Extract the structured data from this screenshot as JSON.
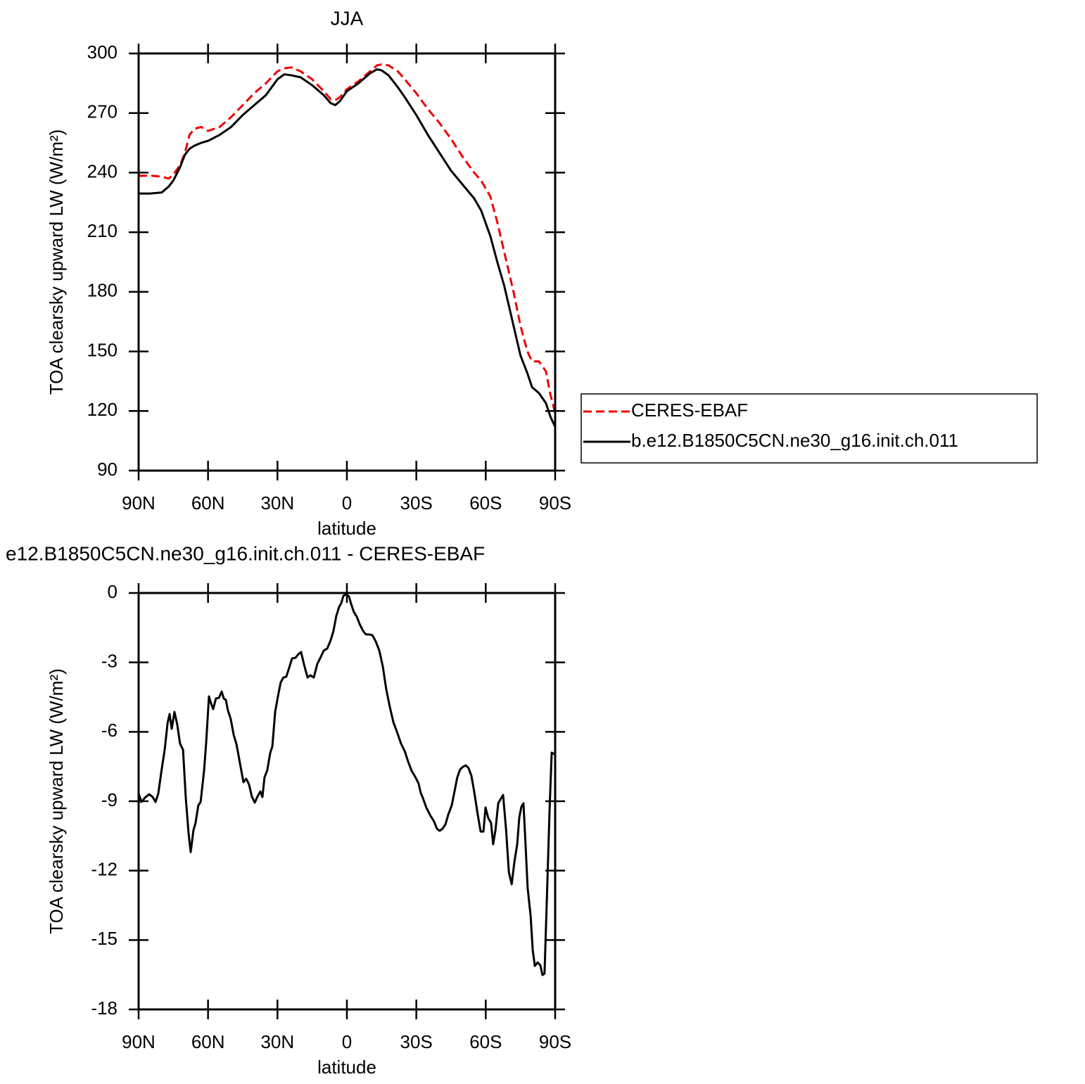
{
  "chart_data": [
    {
      "type": "line",
      "title": "JJA",
      "x_label": "latitude",
      "y_label": "TOA clearsky upward LW (W/m²)",
      "x": [
        90,
        85,
        80,
        77,
        75,
        72,
        70,
        68,
        66,
        63,
        60,
        55,
        50,
        45,
        40,
        35,
        30,
        27,
        24,
        20,
        15,
        10,
        7,
        5,
        3,
        0,
        -5,
        -10,
        -13,
        -15,
        -18,
        -22,
        -25,
        -30,
        -35,
        -40,
        -45,
        -50,
        -55,
        -58,
        -62,
        -65,
        -68,
        -72,
        -75,
        -78,
        -80,
        -83,
        -86,
        -88,
        -90
      ],
      "series": [
        {
          "name": "CERES-EBAF",
          "color": "#ee0000",
          "linestyle": "dashed",
          "values": [
            238.4,
            238.5,
            238,
            237,
            239,
            244,
            250,
            259,
            262,
            263,
            261,
            263,
            268,
            274,
            280,
            285,
            291,
            292.5,
            293,
            291,
            287,
            281,
            277,
            276.5,
            278,
            282,
            286,
            291,
            294,
            294.5,
            294,
            291,
            287,
            280,
            272,
            265,
            257,
            248,
            240,
            236,
            228,
            215,
            200,
            180,
            163,
            150,
            145,
            145,
            140,
            128,
            119
          ]
        },
        {
          "name": "b.e12.B1850C5CN.ne30_g16.init.ch.011",
          "color": "#000000",
          "linestyle": "solid",
          "values": [
            229.5,
            229.5,
            230,
            233,
            236,
            243,
            249,
            252,
            253.5,
            255,
            256,
            259,
            263,
            269,
            274,
            279,
            287,
            289.5,
            289,
            288,
            284,
            279,
            275,
            274,
            276,
            281,
            285,
            290,
            292,
            291.5,
            289,
            283,
            278,
            269,
            259,
            250,
            241,
            234,
            227,
            221,
            208,
            195,
            183,
            163,
            148,
            139,
            132,
            129,
            124,
            117,
            112
          ]
        }
      ],
      "xlim": [
        90,
        -90
      ],
      "xticks": [
        {
          "value": 90,
          "label": "90N"
        },
        {
          "value": 60,
          "label": "60N"
        },
        {
          "value": 30,
          "label": "30N"
        },
        0,
        {
          "value": -30,
          "label": "30S"
        },
        {
          "value": -60,
          "label": "60S"
        },
        {
          "value": -90,
          "label": "90S"
        }
      ],
      "ylim": [
        90,
        300
      ],
      "yticks": [
        90,
        120,
        150,
        180,
        210,
        240,
        270,
        300
      ],
      "legend": "right"
    },
    {
      "type": "line",
      "title": "e12.B1850C5CN.ne30_g16.init.ch.011 - CERES-EBAF",
      "x_label": "latitude",
      "y_label": "TOA clearsky upward LW (W/m²)",
      "x": [
        90,
        88.8,
        87,
        85.4,
        83.9,
        82.7,
        81.5,
        80.3,
        78.7,
        77.5,
        76.6,
        75.7,
        74.5,
        73.3,
        72.1,
        70.8,
        69.6,
        68.4,
        67.5,
        66.3,
        65.4,
        64.2,
        63.2,
        61.7,
        60.8,
        59.6,
        58.7,
        57.8,
        56.6,
        55.3,
        54.1,
        53.2,
        52.3,
        51.4,
        50.2,
        48.9,
        47.7,
        46.2,
        44.7,
        43.5,
        42.3,
        41.1,
        39.8,
        38.6,
        37.4,
        36.5,
        35.6,
        34.4,
        33.1,
        32.2,
        31,
        29.8,
        28.6,
        27.4,
        26.2,
        24.9,
        23.7,
        22.2,
        21,
        19.8,
        18.5,
        17,
        15.8,
        14.3,
        12.8,
        11.6,
        10,
        8.5,
        7,
        5.8,
        4.6,
        3.4,
        2.4,
        1.5,
        0.3,
        -0.9,
        -1.8,
        -3,
        -4.3,
        -5.5,
        -7,
        -8.2,
        -9.4,
        -11,
        -12.5,
        -14,
        -15.5,
        -17,
        -18.5,
        -20.1,
        -21.6,
        -23.4,
        -25,
        -26.4,
        -28,
        -29.5,
        -31,
        -31.9,
        -32.8,
        -34.3,
        -36.2,
        -37.7,
        -38.9,
        -40.1,
        -41.3,
        -42.6,
        -43.8,
        -45.3,
        -46.5,
        -47.7,
        -48.9,
        -50.2,
        -51.4,
        -52.6,
        -53.8,
        -55,
        -56.5,
        -57.8,
        -59,
        -59.9,
        -61.1,
        -62.3,
        -63.2,
        -64.2,
        -65.4,
        -66.6,
        -67.5,
        -68.8,
        -70,
        -71.2,
        -72.4,
        -73.6,
        -74.5,
        -75.4,
        -76.3,
        -77.2,
        -78.1,
        -79.4,
        -80.3,
        -81.2,
        -82.4,
        -83.6,
        -84.5,
        -85.4,
        -86.3,
        -87.6,
        -88.5,
        -89.7
      ],
      "series": [
        {
          "name": "b.e12.B1850C5CN.ne30_g16.init.ch.011 - CERES-EBAF",
          "color": "#000000",
          "linestyle": "solid",
          "values": [
            -8.67,
            -9.03,
            -8.82,
            -8.7,
            -8.82,
            -9.03,
            -8.67,
            -7.81,
            -6.75,
            -5.63,
            -5.23,
            -5.87,
            -5.14,
            -5.69,
            -6.51,
            -6.78,
            -8.88,
            -10.4,
            -11.2,
            -10.25,
            -9.94,
            -9.18,
            -9.03,
            -7.66,
            -6.45,
            -4.47,
            -4.77,
            -5.02,
            -4.56,
            -4.53,
            -4.26,
            -4.56,
            -4.62,
            -5.08,
            -5.44,
            -6.14,
            -6.54,
            -7.36,
            -8.18,
            -8.03,
            -8.27,
            -8.79,
            -9.06,
            -8.79,
            -8.58,
            -8.82,
            -7.97,
            -7.66,
            -6.9,
            -6.63,
            -5.14,
            -4.47,
            -3.86,
            -3.65,
            -3.62,
            -3.22,
            -2.83,
            -2.8,
            -2.65,
            -2.55,
            -3.1,
            -3.65,
            -3.56,
            -3.65,
            -3.07,
            -2.83,
            -2.49,
            -2.4,
            -2.04,
            -1.64,
            -1,
            -0.61,
            -0.43,
            -0.12,
            -0.06,
            -0.15,
            -0.46,
            -0.82,
            -1.03,
            -1.34,
            -1.64,
            -1.79,
            -1.79,
            -1.82,
            -2.1,
            -2.49,
            -3.16,
            -4.16,
            -4.9,
            -5.59,
            -5.99,
            -6.51,
            -6.84,
            -7.27,
            -7.69,
            -7.94,
            -8.24,
            -8.64,
            -8.85,
            -9.27,
            -9.64,
            -9.88,
            -10.19,
            -10.28,
            -10.19,
            -10,
            -9.58,
            -9.18,
            -8.58,
            -7.97,
            -7.63,
            -7.51,
            -7.45,
            -7.57,
            -7.9,
            -8.58,
            -9.55,
            -10.31,
            -10.31,
            -9.27,
            -9.73,
            -9.94,
            -10.86,
            -10.25,
            -9.09,
            -8.88,
            -8.73,
            -10.25,
            -12.07,
            -12.59,
            -11.61,
            -10.86,
            -9.7,
            -9.24,
            -9.09,
            -10.86,
            -12.74,
            -13.96,
            -15.42,
            -16.12,
            -15.97,
            -16.09,
            -16.51,
            -16.45,
            -13.59,
            -9.33,
            -6.9,
            -6.97
          ]
        }
      ],
      "xlim": [
        90,
        -90
      ],
      "xticks": [
        {
          "value": 90,
          "label": "90N"
        },
        {
          "value": 60,
          "label": "60N"
        },
        {
          "value": 30,
          "label": "30N"
        },
        0,
        {
          "value": -30,
          "label": "30S"
        },
        {
          "value": -60,
          "label": "60S"
        },
        {
          "value": -90,
          "label": "90S"
        }
      ],
      "ylim": [
        -18,
        0
      ],
      "yticks": [
        -18,
        -15,
        -12,
        -9,
        -6,
        -3,
        0
      ]
    }
  ]
}
